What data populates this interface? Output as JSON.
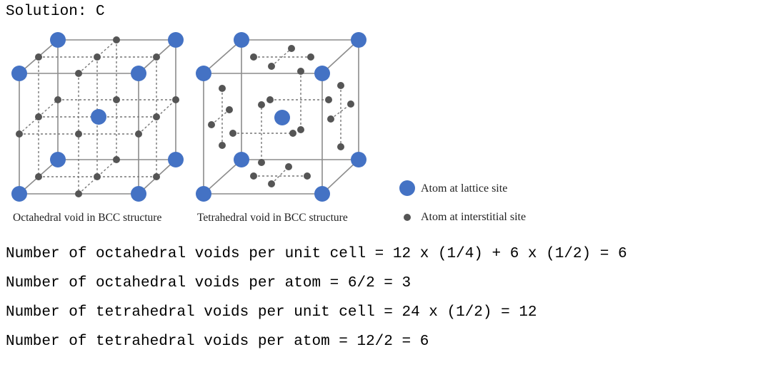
{
  "solution": {
    "text": "Solution: C"
  },
  "diagrams": {
    "octahedral_caption": "Octahedral void in BCC structure",
    "tetrahedral_caption": "Tetrahedral void in BCC structure"
  },
  "legend": {
    "lattice": "Atom at lattice site",
    "interstitial": "Atom at interstitial site"
  },
  "lines": [
    "Number of octahedral voids per unit cell = 12 x (1/4) + 6 x (1/2) = 6",
    "Number of octahedral voids per atom = 6/2 = 3",
    "Number of tetrahedral voids per unit cell = 24 x (1/2) = 12",
    "Number of tetrahedral voids per atom = 12/2 = 6"
  ],
  "colors": {
    "lattice_atom": "#4472c4",
    "interstitial_atom": "#555555",
    "edge": "#8c8c8c"
  }
}
